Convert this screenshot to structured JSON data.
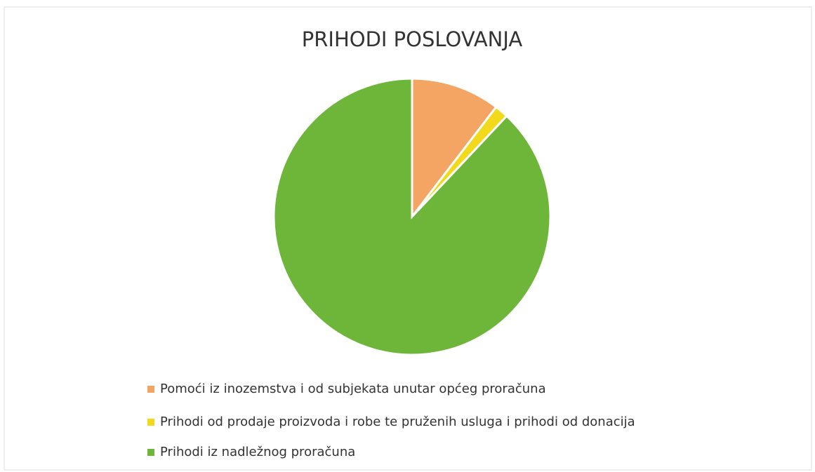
{
  "chart_data": {
    "type": "pie",
    "title": "PRIHODI POSLOVANJA",
    "categories": [
      "Pomoći iz inozemstva i od subjekata unutar općeg proračuna",
      "Prihodi od prodaje proizvoda i robe te pruženih usluga i prihodi od donacija",
      "Prihodi iz nadležnog proračuna"
    ],
    "values": [
      10.4,
      1.6,
      88.0
    ],
    "colors": [
      "#f4a463",
      "#f2d91c",
      "#6db63a"
    ]
  }
}
